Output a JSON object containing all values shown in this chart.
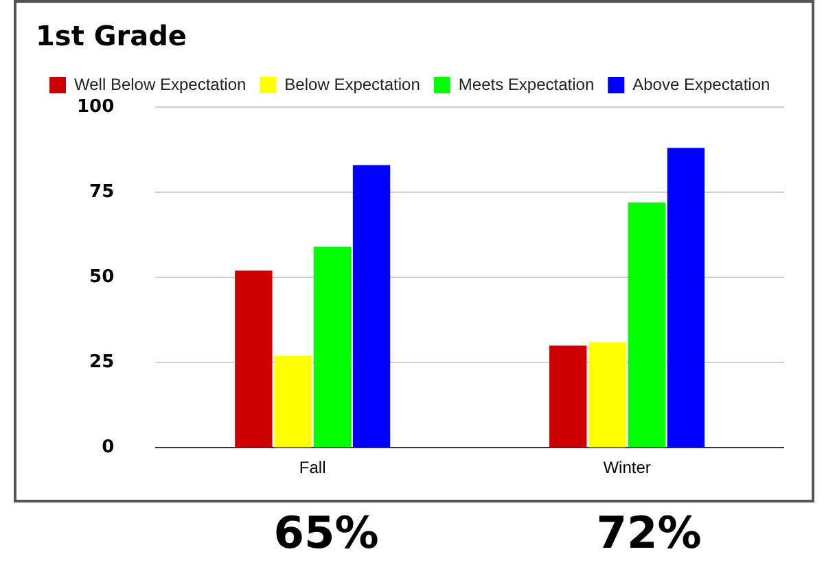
{
  "chart_data": {
    "type": "bar",
    "title": "1st Grade",
    "categories": [
      "Fall",
      "Winter"
    ],
    "series": [
      {
        "name": "Well Below Expectation",
        "color": "#cc0000",
        "values": [
          52,
          30
        ]
      },
      {
        "name": "Below Expectation",
        "color": "#ffff00",
        "values": [
          27,
          31
        ]
      },
      {
        "name": "Meets Expectation",
        "color": "#00ff00",
        "values": [
          59,
          72
        ]
      },
      {
        "name": "Above Expectation",
        "color": "#0000ff",
        "values": [
          83,
          88
        ]
      }
    ],
    "ylim": [
      0,
      100
    ],
    "yticks": [
      0,
      25,
      50,
      75,
      100
    ],
    "grid": "y",
    "legend": "top left",
    "annotations": [
      "65%",
      "72%"
    ]
  }
}
